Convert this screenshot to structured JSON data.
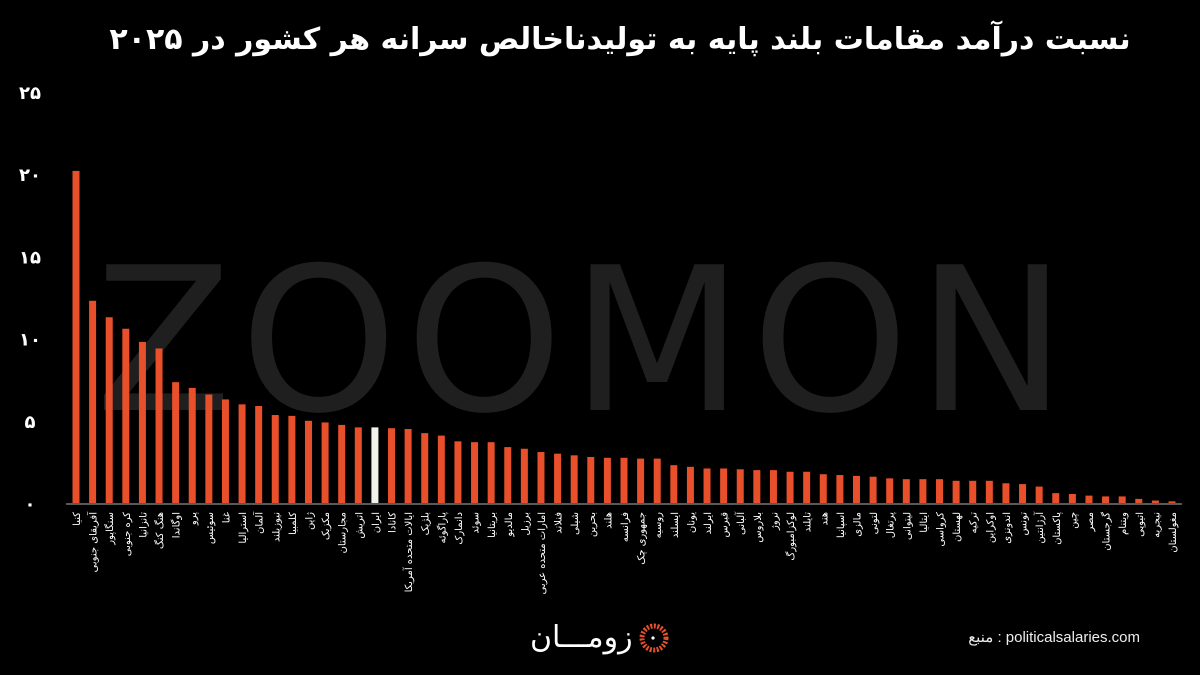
{
  "chart_data": {
    "type": "bar",
    "title": "نسبت درآمد مقامات بلند پایه به تولیدناخالص سرانه هر کشور در ۲۰۲۵",
    "xlabel": "",
    "ylabel": "",
    "ylim": [
      0,
      25
    ],
    "yticks": [
      0,
      5,
      10,
      15,
      20,
      25
    ],
    "ytick_labels": [
      "۰",
      "۵",
      "۱۰",
      "۱۵",
      "۲۰",
      "۲۵"
    ],
    "grid": false,
    "bar_color": "#e8502c",
    "highlight_color": "#f2f2ea",
    "highlight_category": "ایران",
    "categories": [
      "کنیا",
      "آفریقای جنوبی",
      "سنگاپور",
      "کره جنوبی",
      "تانزانیا",
      "هنگ کنگ",
      "اوگاندا",
      "پرو",
      "سوئیس",
      "غنا",
      "استرالیا",
      "آلمان",
      "نیوزیلند",
      "کلمبیا",
      "ژاپن",
      "مکزیک",
      "مجارستان",
      "اتریش",
      "ایران",
      "کانادا",
      "ایالات متحده آمریکا",
      "بلژیک",
      "پاراگوئه",
      "دانمارک",
      "سوئد",
      "بریتانیا",
      "مالدیو",
      "برزیل",
      "امارات متحده عربی",
      "فنلاند",
      "شیلی",
      "بحرین",
      "هلند",
      "فرانسه",
      "جمهوری چک",
      "روسیه",
      "ایسلند",
      "یونان",
      "ایرلند",
      "قبرس",
      "آلبانی",
      "بلاروس",
      "نروژ",
      "لوکزامبورگ",
      "تایلند",
      "هند",
      "اسپانیا",
      "مالزی",
      "لتونی",
      "پرتغال",
      "لیتوانی",
      "ایتالیا",
      "کرواسی",
      "لهستان",
      "ترکیه",
      "اوکراین",
      "اندونزی",
      "تونس",
      "آرژانتین",
      "پاکستان",
      "چین",
      "مصر",
      "گرجستان",
      "ویتنام",
      "اتیوپی",
      "نیجریه",
      "مغولستان"
    ],
    "values": [
      20.2,
      12.3,
      11.3,
      10.6,
      9.8,
      9.4,
      7.35,
      7.0,
      6.6,
      6.3,
      6.0,
      5.9,
      5.35,
      5.3,
      5.0,
      4.9,
      4.75,
      4.6,
      4.6,
      4.55,
      4.5,
      4.25,
      4.1,
      3.75,
      3.7,
      3.7,
      3.4,
      3.3,
      3.1,
      3.0,
      2.9,
      2.8,
      2.75,
      2.75,
      2.7,
      2.7,
      2.3,
      2.2,
      2.1,
      2.1,
      2.05,
      2.0,
      2.0,
      1.9,
      1.9,
      1.75,
      1.7,
      1.65,
      1.6,
      1.5,
      1.45,
      1.45,
      1.45,
      1.35,
      1.35,
      1.35,
      1.2,
      1.15,
      1.0,
      0.6,
      0.55,
      0.45,
      0.4,
      0.4,
      0.25,
      0.15,
      0.1
    ]
  },
  "watermark": "ZOOMON",
  "logo_text": "زومـــان",
  "source": "منبع : politicalsalaries.com"
}
